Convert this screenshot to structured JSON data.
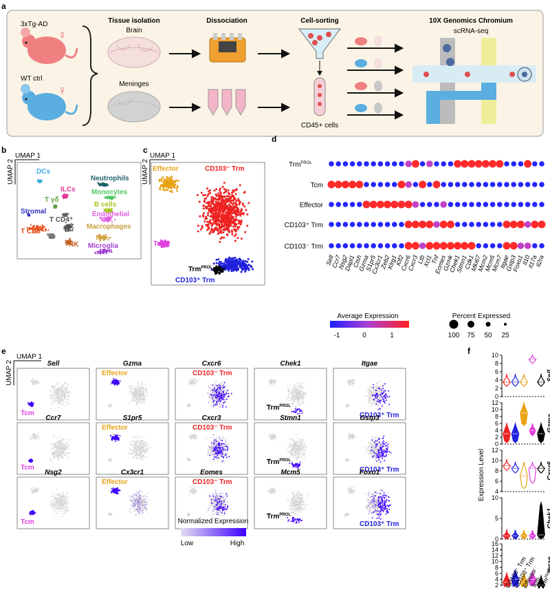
{
  "panel_a": {
    "label": "a",
    "mouse1": "3xTg-AD",
    "mouse2": "WT ctrl",
    "female_symbol": "♀",
    "col_tissue": "Tissue isolation",
    "brain": "Brain",
    "meninges": "Meninges",
    "col_dissociation": "Dissociation",
    "col_sorting": "Cell-sorting",
    "cd45": "CD45+ cells",
    "col_chromium": "10X Genomics Chromium",
    "scrna": "scRNA-seq"
  },
  "panel_b": {
    "label": "b",
    "umap1": "UMAP 1",
    "umap2": "UMAP 2",
    "clusters": [
      "Neutrophils",
      "DCs",
      "ILCs",
      "Monocytes",
      "T γδ",
      "Stromal",
      "T CD4⁺",
      "B cells",
      "Endothelial",
      "T CD8⁺",
      "Macrophages",
      "NK",
      "Microglia"
    ]
  },
  "panel_c": {
    "label": "c",
    "umap1": "UMAP 1",
    "umap2": "UMAP 2",
    "clusters": [
      "Effector",
      "CD103⁻ Trm",
      "Tcm",
      "Trm",
      "PROL",
      "CD103⁺ Trm"
    ]
  },
  "panel_d": {
    "label": "d",
    "rows": [
      "Trm",
      "Tcm",
      "Effector",
      "CD103⁺ Trm",
      "CD103⁻ Trm"
    ],
    "rows_sup": [
      "PROL",
      "",
      "",
      "",
      ""
    ],
    "genes": [
      "Sell",
      "Ccr7",
      "Nsg2",
      "Dapl1",
      "Ctsh",
      "Gzma",
      "S1pr5",
      "Cx3cr1",
      "Zeb2",
      "Klrg1",
      "Klf2",
      "Cxcr6",
      "Cxcr3",
      "Ltb",
      "Xcl1",
      "Tnf",
      "Eomes",
      "Gzmk",
      "Chek1",
      "Stmn1",
      "Cdk1",
      "Mki67",
      "Mcm2",
      "Mcm5",
      "Mcm7",
      "Itgae",
      "Gstp3",
      "Foxo1",
      "Il10",
      "Il17a",
      "Il2ra"
    ],
    "legend_avg": "Average Expression",
    "avg_ticks": [
      "-1",
      "0",
      "1"
    ],
    "legend_pct": "Percent Expressed",
    "pct_ticks": [
      "100",
      "75",
      "50",
      "25"
    ]
  },
  "panel_e": {
    "label": "e",
    "umap1": "UMAP 1",
    "umap2": "UMAP 2",
    "genes": [
      "Sell",
      "Gzma",
      "Cxcr6",
      "Chek1",
      "Itgae",
      "Ccr7",
      "S1pr5",
      "Cxcr3",
      "Stmn1",
      "Gstp3",
      "Nsg2",
      "Cx3cr1",
      "Eomes",
      "Mcm5",
      "Foxo1"
    ],
    "annotations": [
      "Tcm",
      "Effector",
      "CD103⁻ Trm",
      "Trm",
      "CD103⁺ Trm",
      "Tcm",
      "Effector",
      "CD103⁻ Trm",
      "Trm",
      "CD103⁺ Trm",
      "Tcm",
      "Effector",
      "CD103⁻ Trm",
      "Trm",
      "CD103⁺ Trm"
    ],
    "prol": "PROL",
    "legend_title": "Normalized Expression",
    "legend_low": "Low",
    "legend_high": "High"
  },
  "panel_f": {
    "label": "f",
    "ylabel": "Expression Level",
    "genes": [
      "Sell",
      "Gzma",
      "Cxcr6",
      "Chek1",
      "Itgae"
    ],
    "xcats": [
      "CD103⁻ Trm",
      "CD103⁺ Trm",
      "Effector",
      "Tcm",
      "Trm"
    ],
    "xcat_sup": [
      "",
      "",
      "",
      "",
      "PROL"
    ],
    "yticks": [
      [
        "0",
        "2",
        "4",
        "6",
        "8",
        "10"
      ],
      [
        "0",
        "2",
        "4",
        "6",
        "8",
        "10",
        "12"
      ],
      [
        "4",
        "6",
        "8",
        "10",
        "12"
      ],
      [
        "0",
        "5",
        "10"
      ],
      [
        "2",
        "4",
        "6",
        "8",
        "10",
        "12",
        "14",
        "16"
      ]
    ]
  },
  "colors": {
    "effector": "#e8a317",
    "cd103neg": "#ee2222",
    "tcm": "#e040e0",
    "prol": "#000000",
    "cd103pos": "#2020dd",
    "high": "#3d00ff",
    "low": "#d8d8d8"
  }
}
